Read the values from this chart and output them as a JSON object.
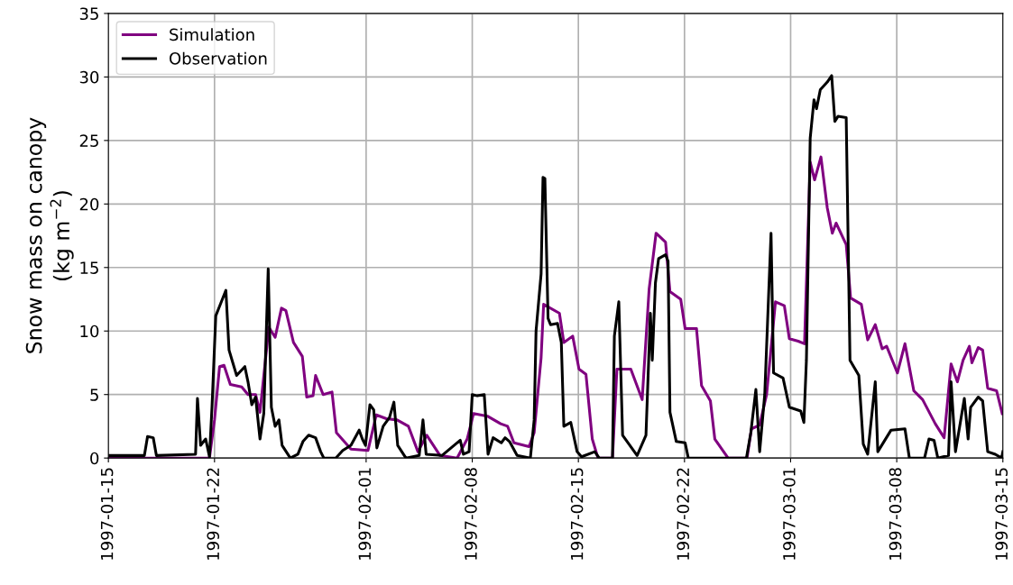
{
  "chart_data": {
    "type": "line",
    "ylabel": "Snow mass on canopy\n(kg m$^{−2}$)",
    "xlim": [
      "1997-01-15",
      "1997-03-15"
    ],
    "xticks": [
      "1997-01-15",
      "1997-01-22",
      "1997-02-01",
      "1997-02-08",
      "1997-02-15",
      "1997-02-22",
      "1997-03-01",
      "1997-03-08",
      "1997-03-15"
    ],
    "ylim": [
      0,
      35
    ],
    "yticks": [
      0,
      5,
      10,
      15,
      20,
      25,
      30,
      35
    ],
    "grid": true,
    "legend": "top left",
    "line_style": "solid",
    "marker": "none",
    "series": [
      {
        "name": "Simulation",
        "color": "#800080",
        "x": [
          "1997-01-15T00:00",
          "1997-01-21T16:00",
          "1997-01-22T00:00",
          "1997-01-22T08:00",
          "1997-01-22T15:00",
          "1997-01-23T01:00",
          "1997-01-23T19:00",
          "1997-01-24T05:00",
          "1997-01-24T17:00",
          "1997-01-25T00:00",
          "1997-01-25T14:00",
          "1997-01-26T00:00",
          "1997-01-26T10:00",
          "1997-01-26T17:00",
          "1997-01-27T05:00",
          "1997-01-27T19:00",
          "1997-01-28T02:00",
          "1997-01-28T12:00",
          "1997-01-28T16:00",
          "1997-01-29T04:00",
          "1997-01-29T18:00",
          "1997-01-30T01:00",
          "1997-01-31T00:00",
          "1997-02-01T03:00",
          "1997-02-01T16:00",
          "1997-02-02T08:00",
          "1997-02-03T01:00",
          "1997-02-03T19:00",
          "1997-02-04T10:00",
          "1997-02-05T00:00",
          "1997-02-05T21:00",
          "1997-02-07T00:00",
          "1997-02-07T16:00",
          "1997-02-08T02:00",
          "1997-02-09T00:00",
          "1997-02-09T21:00",
          "1997-02-10T08:00",
          "1997-02-10T18:00",
          "1997-02-11T18:00",
          "1997-02-12T02:00",
          "1997-02-12T13:00",
          "1997-02-12T17:00",
          "1997-02-13T18:00",
          "1997-02-14T01:00",
          "1997-02-14T15:00",
          "1997-02-15T01:00",
          "1997-02-15T12:00",
          "1997-02-15T22:00",
          "1997-02-16T07:00",
          "1997-02-17T06:00",
          "1997-02-17T13:00",
          "1997-02-18T11:00",
          "1997-02-19T05:00",
          "1997-02-19T16:00",
          "1997-02-20T03:00",
          "1997-02-20T18:00",
          "1997-02-21T01:00",
          "1997-02-21T18:00",
          "1997-02-22T01:00",
          "1997-02-22T19:00",
          "1997-02-23T03:00",
          "1997-02-23T17:00",
          "1997-02-24T00:00",
          "1997-02-24T21:00",
          "1997-02-26T03:00",
          "1997-02-26T10:00",
          "1997-02-26T23:00",
          "1997-02-27T10:00",
          "1997-02-28T00:00",
          "1997-02-28T14:00",
          "1997-02-28T22:00",
          "1997-03-01T12:00",
          "1997-03-01T22:00",
          "1997-03-02T07:00",
          "1997-03-02T14:00",
          "1997-03-03T00:00",
          "1997-03-03T10:00",
          "1997-03-03T18:00",
          "1997-03-04T00:00",
          "1997-03-04T16:00",
          "1997-03-04T23:00",
          "1997-03-05T16:00",
          "1997-03-06T02:00",
          "1997-03-06T14:00",
          "1997-03-07T01:00",
          "1997-03-07T08:00",
          "1997-03-08T01:00",
          "1997-03-08T13:00",
          "1997-03-09T03:00",
          "1997-03-09T17:00",
          "1997-03-10T13:00",
          "1997-03-11T03:00",
          "1997-03-11T14:00",
          "1997-03-12T00:00",
          "1997-03-12T09:00",
          "1997-03-12T19:00",
          "1997-03-12T23:00",
          "1997-03-13T09:00",
          "1997-03-13T16:00",
          "1997-03-14T00:00",
          "1997-03-14T14:00",
          "1997-03-14T23:00"
        ],
        "values": [
          0.0,
          0.0,
          3.0,
          7.2,
          7.3,
          5.8,
          5.6,
          5.0,
          5.0,
          3.6,
          10.3,
          9.5,
          11.8,
          11.6,
          9.1,
          8.0,
          4.8,
          4.9,
          6.5,
          5.0,
          5.2,
          2.0,
          0.7,
          0.6,
          3.4,
          3.1,
          3.0,
          2.5,
          0.5,
          1.8,
          0.2,
          0.0,
          1.5,
          3.5,
          3.3,
          2.7,
          2.5,
          1.2,
          0.9,
          2.0,
          7.9,
          12.1,
          11.4,
          9.1,
          9.6,
          7.0,
          6.6,
          1.5,
          0.0,
          0.0,
          7.0,
          7.0,
          4.6,
          13.3,
          17.7,
          17.0,
          13.1,
          12.5,
          10.2,
          10.2,
          5.7,
          4.5,
          1.5,
          0.0,
          0.0,
          2.3,
          2.6,
          5.0,
          12.3,
          12.0,
          9.4,
          9.2,
          9.0,
          23.3,
          21.9,
          23.7,
          19.7,
          17.7,
          18.5,
          16.8,
          12.6,
          12.1,
          9.3,
          10.5,
          8.6,
          8.8,
          6.7,
          9.0,
          5.3,
          4.6,
          2.7,
          1.6,
          7.4,
          6.0,
          7.7,
          8.8,
          7.5,
          8.7,
          8.5,
          5.5,
          5.3,
          3.5
        ]
      },
      {
        "name": "Observation",
        "color": "#000000",
        "x": [
          "1997-01-15T00:00",
          "1997-01-17T09:00",
          "1997-01-17T14:00",
          "1997-01-17T23:00",
          "1997-01-18T04:00",
          "1997-01-20T18:00",
          "1997-01-20T21:00",
          "1997-01-21T02:00",
          "1997-01-21T10:00",
          "1997-01-21T16:00",
          "1997-01-21T20:00",
          "1997-01-22T02:00",
          "1997-01-22T10:00",
          "1997-01-22T18:00",
          "1997-01-22T23:00",
          "1997-01-23T05:00",
          "1997-01-23T11:00",
          "1997-01-24T00:00",
          "1997-01-24T05:00",
          "1997-01-24T11:00",
          "1997-01-24T17:00",
          "1997-01-25T00:00",
          "1997-01-25T06:00",
          "1997-01-25T13:00",
          "1997-01-25T18:00",
          "1997-01-26T00:00",
          "1997-01-26T06:00",
          "1997-01-26T11:00",
          "1997-01-27T00:00",
          "1997-01-27T12:00",
          "1997-01-27T20:00",
          "1997-01-28T05:00",
          "1997-01-28T16:00",
          "1997-01-29T00:00",
          "1997-01-29T05:00",
          "1997-01-30T00:00",
          "1997-01-30T11:00",
          "1997-01-31T00:00",
          "1997-01-31T13:00",
          "1997-01-31T18:00",
          "1997-01-31T23:00",
          "1997-02-01T06:00",
          "1997-02-01T12:00",
          "1997-02-01T17:00",
          "1997-02-02T03:00",
          "1997-02-02T13:00",
          "1997-02-02T20:00",
          "1997-02-03T02:00",
          "1997-02-03T15:00",
          "1997-02-04T12:00",
          "1997-02-04T18:00",
          "1997-02-04T23:00",
          "1997-02-06T00:00",
          "1997-02-07T05:00",
          "1997-02-07T10:00",
          "1997-02-07T19:00",
          "1997-02-08T00:00",
          "1997-02-08T08:00",
          "1997-02-08T19:00",
          "1997-02-09T01:00",
          "1997-02-09T09:00",
          "1997-02-09T22:00",
          "1997-02-10T04:00",
          "1997-02-10T11:00",
          "1997-02-10T23:00",
          "1997-02-11T20:00",
          "1997-02-12T02:00",
          "1997-02-12T05:00",
          "1997-02-12T13:00",
          "1997-02-12T16:00",
          "1997-02-12T19:00",
          "1997-02-13T00:00",
          "1997-02-13T04:00",
          "1997-02-13T15:00",
          "1997-02-13T21:00",
          "1997-02-14T01:00",
          "1997-02-14T12:00",
          "1997-02-14T22:00",
          "1997-02-15T05:00",
          "1997-02-16T02:00",
          "1997-02-16T09:00",
          "1997-02-17T06:00",
          "1997-02-17T09:00",
          "1997-02-17T16:00",
          "1997-02-17T22:00",
          "1997-02-18T21:00",
          "1997-02-19T11:00",
          "1997-02-19T18:00",
          "1997-02-19T21:00",
          "1997-02-20T02:00",
          "1997-02-20T07:00",
          "1997-02-20T18:00",
          "1997-02-20T22:00",
          "1997-02-21T01:00",
          "1997-02-21T11:00",
          "1997-02-22T01:00",
          "1997-02-22T06:00",
          "1997-02-26T02:00",
          "1997-02-26T09:00",
          "1997-02-26T17:00",
          "1997-02-26T23:00",
          "1997-02-27T07:00",
          "1997-02-27T17:00",
          "1997-02-27T21:00",
          "1997-02-28T12:00",
          "1997-02-28T22:00",
          "1997-03-01T16:00",
          "1997-03-01T21:00",
          "1997-03-02T01:00",
          "1997-03-02T07:00",
          "1997-03-02T13:00",
          "1997-03-02T17:00",
          "1997-03-02T23:00",
          "1997-03-03T10:00",
          "1997-03-03T17:00",
          "1997-03-03T22:00",
          "1997-03-04T03:00",
          "1997-03-04T16:00",
          "1997-03-04T22:00",
          "1997-03-05T12:00",
          "1997-03-05T19:00",
          "1997-03-06T02:00",
          "1997-03-06T14:00",
          "1997-03-06T18:00",
          "1997-03-07T15:00",
          "1997-03-08T13:00",
          "1997-03-08T20:00",
          "1997-03-09T20:00",
          "1997-03-10T03:00",
          "1997-03-10T11:00",
          "1997-03-10T17:00",
          "1997-03-11T10:00",
          "1997-03-11T14:00",
          "1997-03-11T21:00",
          "1997-03-12T11:00",
          "1997-03-12T17:00",
          "1997-03-12T21:00",
          "1997-03-13T09:00",
          "1997-03-13T16:00",
          "1997-03-14T00:00",
          "1997-03-14T12:00",
          "1997-03-14T22:00",
          "1997-03-15T00:00"
        ],
        "values": [
          0.2,
          0.2,
          1.7,
          1.6,
          0.2,
          0.3,
          4.7,
          1.0,
          1.5,
          0.1,
          4.0,
          11.2,
          12.2,
          13.2,
          8.5,
          7.5,
          6.5,
          7.2,
          6.0,
          4.2,
          4.8,
          1.5,
          3.5,
          14.9,
          4.0,
          2.5,
          3.0,
          1.0,
          0.0,
          0.3,
          1.3,
          1.8,
          1.6,
          0.5,
          0.0,
          0.0,
          0.6,
          1.0,
          2.2,
          1.5,
          1.0,
          4.2,
          3.8,
          0.8,
          2.5,
          3.2,
          4.4,
          1.0,
          0.0,
          0.2,
          3.0,
          0.3,
          0.2,
          1.4,
          0.3,
          0.5,
          5.0,
          4.9,
          5.0,
          0.3,
          1.6,
          1.2,
          1.6,
          1.3,
          0.2,
          0.0,
          3.0,
          10.0,
          14.5,
          22.1,
          22.0,
          11.0,
          10.5,
          10.6,
          9.1,
          2.5,
          2.8,
          0.5,
          0.1,
          0.5,
          0.0,
          0.0,
          9.6,
          12.3,
          1.8,
          0.2,
          1.8,
          11.4,
          7.7,
          13.8,
          15.7,
          16.0,
          15.5,
          3.6,
          1.3,
          1.2,
          0.0,
          0.0,
          2.0,
          5.4,
          0.5,
          5.0,
          17.7,
          6.7,
          6.3,
          4.0,
          3.7,
          2.8,
          7.7,
          25.2,
          28.2,
          27.5,
          29.0,
          29.6,
          30.1,
          26.5,
          26.9,
          26.8,
          7.7,
          6.5,
          1.1,
          0.3,
          6.0,
          0.5,
          2.2,
          2.3,
          0.0,
          0.0,
          1.5,
          1.4,
          0.0,
          0.2,
          6.0,
          0.5,
          4.7,
          1.5,
          4.0,
          4.8,
          4.5,
          0.5,
          0.3,
          0.0,
          0.5
        ]
      }
    ]
  }
}
